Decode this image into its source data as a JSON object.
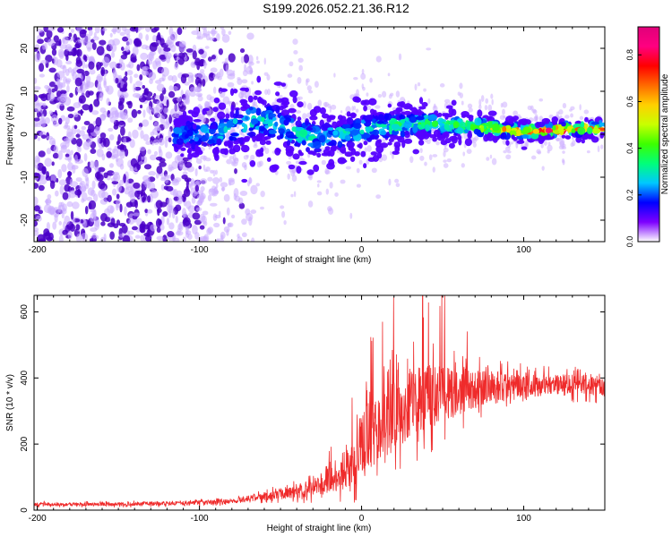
{
  "figure": {
    "title": "S199.2026.052.21.36.R12"
  },
  "colors": {
    "snr_line": "#ef2b2b",
    "spectro_dense": "#4a00c8",
    "spectro_light": "#c9a9ff",
    "frame": "#000000"
  },
  "colorbar": {
    "label": "Normalized spectral amplitude",
    "range": [
      0.0,
      0.92
    ],
    "ticks": [
      0.0,
      0.2,
      0.4,
      0.6,
      0.8
    ],
    "tick_labels": [
      "0.0",
      "0.2",
      "0.4",
      "0.6",
      "0.8"
    ],
    "colormap": [
      "#ffffff",
      "#7d00ff",
      "#0000ff",
      "#00c8ff",
      "#00ff7a",
      "#3cff00",
      "#c8ff00",
      "#ffd000",
      "#ff6a00",
      "#ff0000",
      "#ff0080",
      "#e0007a"
    ]
  },
  "chart_data": [
    {
      "type": "heatmap",
      "title": "",
      "xlabel": "Height of straight line (km)",
      "ylabel": "Frequency (Hz)",
      "xlim": [
        -202,
        150
      ],
      "ylim": [
        -25,
        25
      ],
      "xticks": [
        -200,
        -100,
        0,
        100
      ],
      "xtick_labels": [
        "-200",
        "-100",
        "0",
        "100"
      ],
      "yticks": [
        -20,
        -10,
        0,
        10,
        20
      ],
      "ytick_labels": [
        "-20",
        "-10",
        "0",
        "10",
        "20"
      ],
      "description_points": {
        "noise_region_x": [
          -202,
          -65
        ],
        "signal_center_freq_hz": [
          [
            -110,
            0
          ],
          [
            -90,
            0
          ],
          [
            -65,
            3.5
          ],
          [
            -55,
            3
          ],
          [
            -45,
            1
          ],
          [
            -30,
            -1
          ],
          [
            -10,
            0
          ],
          [
            0,
            1
          ],
          [
            20,
            2
          ],
          [
            40,
            2.5
          ],
          [
            60,
            2
          ],
          [
            80,
            1.5
          ],
          [
            100,
            0.5
          ],
          [
            120,
            1
          ],
          [
            150,
            1.5
          ]
        ],
        "signal_band_width_hz": [
          [
            -110,
            9
          ],
          [
            -65,
            12
          ],
          [
            -40,
            10
          ],
          [
            0,
            8
          ],
          [
            40,
            6
          ],
          [
            80,
            4
          ],
          [
            120,
            3
          ],
          [
            150,
            3
          ]
        ],
        "peak_amplitude": [
          [
            -110,
            0.25
          ],
          [
            -60,
            0.3
          ],
          [
            -20,
            0.3
          ],
          [
            20,
            0.35
          ],
          [
            60,
            0.4
          ],
          [
            100,
            0.7
          ],
          [
            120,
            0.8
          ],
          [
            150,
            0.7
          ]
        ]
      }
    },
    {
      "type": "line",
      "title": "",
      "xlabel": "Height of straight line (km)",
      "ylabel": "SNR (10 * v/v)",
      "xlim": [
        -202,
        150
      ],
      "ylim": [
        0,
        650
      ],
      "xticks": [
        -200,
        -100,
        0,
        100
      ],
      "xtick_labels": [
        "-200",
        "-100",
        "0",
        "100"
      ],
      "yticks": [
        0,
        200,
        400,
        600
      ],
      "ytick_labels": [
        "0",
        "200",
        "400",
        "600"
      ],
      "series": [
        {
          "name": "SNR",
          "envelope_x": [
            -202,
            -150,
            -100,
            -75,
            -60,
            -40,
            -25,
            -15,
            -5,
            0,
            10,
            20,
            30,
            40,
            50,
            60,
            80,
            100,
            120,
            150
          ],
          "envelope_mean": [
            18,
            18,
            22,
            30,
            42,
            55,
            75,
            100,
            145,
            200,
            250,
            290,
            320,
            340,
            350,
            360,
            370,
            375,
            380,
            380
          ],
          "envelope_amplitude": [
            10,
            10,
            12,
            15,
            22,
            35,
            55,
            80,
            130,
            180,
            200,
            200,
            190,
            180,
            160,
            130,
            90,
            70,
            55,
            60
          ],
          "peak_value": 650
        }
      ]
    }
  ]
}
